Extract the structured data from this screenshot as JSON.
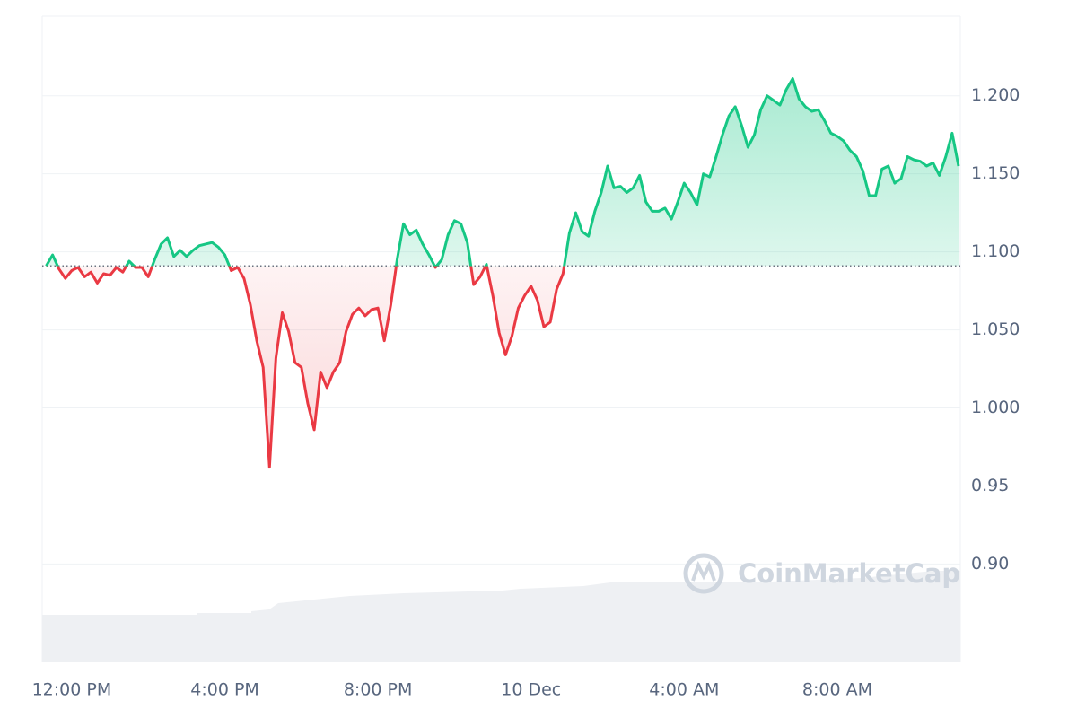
{
  "chart_data": {
    "type": "line",
    "watermark": "CoinMarketCap",
    "categories": [
      null,
      null,
      null,
      null,
      "12:00 PM",
      null,
      null,
      null,
      null,
      null,
      null,
      null,
      null,
      null,
      null,
      null,
      null,
      null,
      null,
      null,
      null,
      null,
      null,
      null,
      null,
      null,
      null,
      null,
      "4:00 PM",
      null,
      null,
      null,
      null,
      null,
      null,
      null,
      null,
      null,
      null,
      null,
      null,
      null,
      null,
      null,
      null,
      null,
      null,
      null,
      null,
      null,
      null,
      null,
      "8:00 PM",
      null,
      null,
      null,
      null,
      null,
      null,
      null,
      null,
      null,
      null,
      null,
      null,
      null,
      null,
      null,
      null,
      null,
      null,
      null,
      null,
      null,
      null,
      null,
      "10 Dec",
      null,
      null,
      null,
      null,
      null,
      null,
      null,
      null,
      null,
      null,
      null,
      null,
      null,
      null,
      null,
      null,
      null,
      null,
      null,
      null,
      null,
      null,
      null,
      "4:00 AM",
      null,
      null,
      null,
      null,
      null,
      null,
      null,
      null,
      null,
      null,
      null,
      null,
      null,
      null,
      null,
      null,
      null,
      null,
      null,
      null,
      null,
      null,
      null,
      "8:00 AM",
      null,
      null,
      null,
      null,
      null,
      null,
      null,
      null,
      null,
      null,
      null,
      null,
      null,
      null,
      null,
      null,
      null,
      null,
      null
    ],
    "values": [
      1.091,
      1.098,
      1.089,
      1.083,
      1.088,
      1.09,
      1.084,
      1.087,
      1.08,
      1.086,
      1.085,
      1.09,
      1.087,
      1.094,
      1.09,
      1.09,
      1.084,
      1.095,
      1.105,
      1.109,
      1.097,
      1.101,
      1.097,
      1.101,
      1.104,
      1.105,
      1.106,
      1.103,
      1.098,
      1.088,
      1.09,
      1.083,
      1.066,
      1.043,
      1.026,
      0.962,
      1.032,
      1.061,
      1.049,
      1.029,
      1.026,
      1.003,
      0.986,
      1.023,
      1.013,
      1.023,
      1.029,
      1.049,
      1.06,
      1.064,
      1.059,
      1.063,
      1.064,
      1.043,
      1.066,
      1.095,
      1.118,
      1.111,
      1.114,
      1.105,
      1.098,
      1.09,
      1.095,
      1.111,
      1.12,
      1.118,
      1.106,
      1.079,
      1.084,
      1.092,
      1.072,
      1.048,
      1.034,
      1.046,
      1.064,
      1.072,
      1.078,
      1.069,
      1.052,
      1.055,
      1.076,
      1.086,
      1.112,
      1.125,
      1.113,
      1.11,
      1.126,
      1.138,
      1.155,
      1.141,
      1.142,
      1.138,
      1.141,
      1.149,
      1.132,
      1.126,
      1.126,
      1.128,
      1.121,
      1.132,
      1.144,
      1.138,
      1.13,
      1.15,
      1.148,
      1.161,
      1.175,
      1.187,
      1.193,
      1.181,
      1.167,
      1.175,
      1.191,
      1.2,
      1.197,
      1.194,
      1.204,
      1.211,
      1.198,
      1.193,
      1.19,
      1.191,
      1.184,
      1.176,
      1.174,
      1.171,
      1.165,
      1.161,
      1.152,
      1.136,
      1.136,
      1.153,
      1.155,
      1.144,
      1.147,
      1.161,
      1.159,
      1.158,
      1.155,
      1.157,
      1.149,
      1.161,
      1.176,
      1.155
    ],
    "baseline": 1.091,
    "color_up": "#16c784",
    "color_down": "#ea3943",
    "ylim": [
      0.837,
      1.251
    ],
    "yticks": [
      {
        "value": 0.9,
        "label": "0.90"
      },
      0.95,
      {
        "value": 1.0,
        "label": "1.000"
      },
      {
        "value": 1.05,
        "label": "1.050"
      },
      {
        "value": 1.1,
        "label": "1.100"
      },
      {
        "value": 1.15,
        "label": "1.150"
      },
      {
        "value": 1.2,
        "label": "1.200"
      }
    ],
    "grid": true
  }
}
